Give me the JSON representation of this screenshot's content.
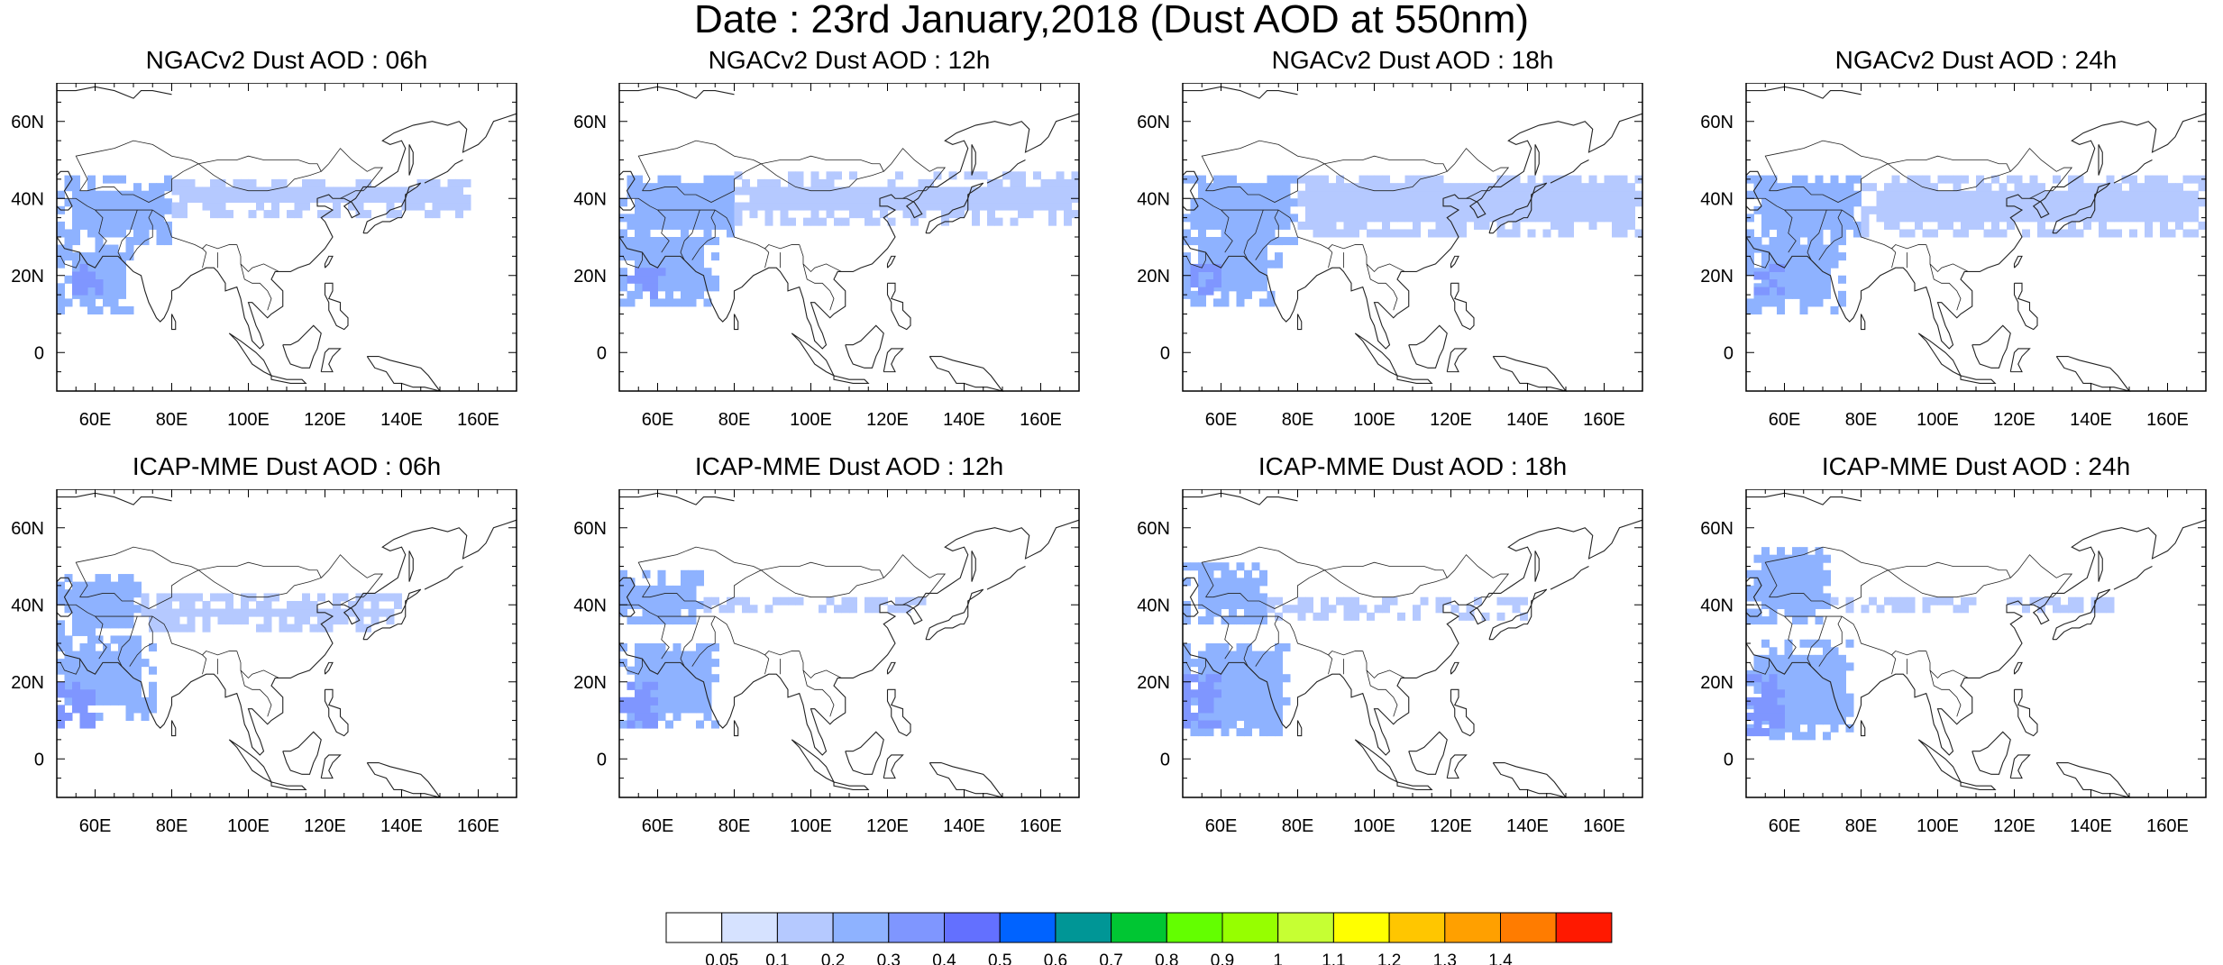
{
  "title": "Date : 23rd January,2018 (Dust AOD at 550nm)",
  "chart_data": [
    {
      "type": "heatmap",
      "title": "NGACv2 Dust AOD : 06h",
      "model": "NGACv2",
      "lead": "06h",
      "xticks": [
        "60E",
        "80E",
        "100E",
        "120E",
        "140E",
        "160E"
      ],
      "yticks": [
        "60N",
        "40N",
        "20N",
        "0"
      ],
      "xlim": [
        50,
        170
      ],
      "ylim": [
        -10,
        70
      ],
      "dust_regions": [
        {
          "lon": [
            50,
            80
          ],
          "lat": [
            28,
            45
          ],
          "value": 0.2
        },
        {
          "lon": [
            80,
            158
          ],
          "lat": [
            35,
            45
          ],
          "value": 0.1
        },
        {
          "lon": [
            50,
            70
          ],
          "lat": [
            10,
            28
          ],
          "value": 0.2
        },
        {
          "lon": [
            52,
            62
          ],
          "lat": [
            15,
            22
          ],
          "value": 0.3
        }
      ]
    },
    {
      "type": "heatmap",
      "title": "NGACv2 Dust AOD : 12h",
      "model": "NGACv2",
      "lead": "12h",
      "xticks": [
        "60E",
        "80E",
        "100E",
        "120E",
        "140E",
        "160E"
      ],
      "yticks": [
        "60N",
        "40N",
        "20N",
        "0"
      ],
      "xlim": [
        50,
        170
      ],
      "ylim": [
        -10,
        70
      ],
      "dust_regions": [
        {
          "lon": [
            50,
            80
          ],
          "lat": [
            28,
            46
          ],
          "value": 0.2
        },
        {
          "lon": [
            80,
            170
          ],
          "lat": [
            33,
            46
          ],
          "value": 0.1
        },
        {
          "lon": [
            50,
            75
          ],
          "lat": [
            12,
            30
          ],
          "value": 0.2
        },
        {
          "lon": [
            52,
            62
          ],
          "lat": [
            14,
            22
          ],
          "value": 0.3
        }
      ]
    },
    {
      "type": "heatmap",
      "title": "NGACv2 Dust AOD : 18h",
      "model": "NGACv2",
      "lead": "18h",
      "xticks": [
        "60E",
        "80E",
        "100E",
        "120E",
        "140E",
        "160E"
      ],
      "yticks": [
        "60N",
        "40N",
        "20N",
        "0"
      ],
      "xlim": [
        50,
        170
      ],
      "ylim": [
        -10,
        70
      ],
      "dust_regions": [
        {
          "lon": [
            50,
            80
          ],
          "lat": [
            28,
            46
          ],
          "value": 0.2
        },
        {
          "lon": [
            80,
            170
          ],
          "lat": [
            30,
            46
          ],
          "value": 0.1
        },
        {
          "lon": [
            50,
            75
          ],
          "lat": [
            12,
            30
          ],
          "value": 0.2
        },
        {
          "lon": [
            52,
            60
          ],
          "lat": [
            15,
            22
          ],
          "value": 0.3
        }
      ]
    },
    {
      "type": "heatmap",
      "title": "NGACv2 Dust AOD : 24h",
      "model": "NGACv2",
      "lead": "24h",
      "xticks": [
        "60E",
        "80E",
        "100E",
        "120E",
        "140E",
        "160E"
      ],
      "yticks": [
        "60N",
        "40N",
        "20N",
        "0"
      ],
      "xlim": [
        50,
        170
      ],
      "ylim": [
        -10,
        70
      ],
      "dust_regions": [
        {
          "lon": [
            50,
            80
          ],
          "lat": [
            28,
            46
          ],
          "value": 0.2
        },
        {
          "lon": [
            80,
            170
          ],
          "lat": [
            30,
            45
          ],
          "value": 0.1
        },
        {
          "lon": [
            50,
            75
          ],
          "lat": [
            10,
            30
          ],
          "value": 0.2
        },
        {
          "lon": [
            52,
            60
          ],
          "lat": [
            15,
            22
          ],
          "value": 0.3
        }
      ]
    },
    {
      "type": "heatmap",
      "title": "ICAP-MME Dust AOD : 06h",
      "model": "ICAP-MME",
      "lead": "06h",
      "xticks": [
        "60E",
        "80E",
        "100E",
        "120E",
        "140E",
        "160E"
      ],
      "yticks": [
        "60N",
        "40N",
        "20N",
        "0"
      ],
      "xlim": [
        50,
        170
      ],
      "ylim": [
        -10,
        70
      ],
      "dust_regions": [
        {
          "lon": [
            50,
            72
          ],
          "lat": [
            30,
            48
          ],
          "value": 0.2
        },
        {
          "lon": [
            72,
            140
          ],
          "lat": [
            33,
            42
          ],
          "value": 0.1
        },
        {
          "lon": [
            50,
            75
          ],
          "lat": [
            10,
            30
          ],
          "value": 0.2
        },
        {
          "lon": [
            50,
            60
          ],
          "lat": [
            8,
            20
          ],
          "value": 0.3
        }
      ]
    },
    {
      "type": "heatmap",
      "title": "ICAP-MME Dust AOD : 12h",
      "model": "ICAP-MME",
      "lead": "12h",
      "xticks": [
        "60E",
        "80E",
        "100E",
        "120E",
        "140E",
        "160E"
      ],
      "yticks": [
        "60N",
        "40N",
        "20N",
        "0"
      ],
      "xlim": [
        50,
        170
      ],
      "ylim": [
        -10,
        70
      ],
      "dust_regions": [
        {
          "lon": [
            50,
            72
          ],
          "lat": [
            35,
            48
          ],
          "value": 0.2
        },
        {
          "lon": [
            72,
            130
          ],
          "lat": [
            38,
            42
          ],
          "value": 0.1
        },
        {
          "lon": [
            50,
            76
          ],
          "lat": [
            8,
            30
          ],
          "value": 0.2
        },
        {
          "lon": [
            50,
            60
          ],
          "lat": [
            8,
            20
          ],
          "value": 0.3
        }
      ]
    },
    {
      "type": "heatmap",
      "title": "ICAP-MME Dust AOD : 18h",
      "model": "ICAP-MME",
      "lead": "18h",
      "xticks": [
        "60E",
        "80E",
        "100E",
        "120E",
        "140E",
        "160E"
      ],
      "yticks": [
        "60N",
        "40N",
        "20N",
        "0"
      ],
      "xlim": [
        50,
        170
      ],
      "ylim": [
        -10,
        70
      ],
      "dust_regions": [
        {
          "lon": [
            50,
            72
          ],
          "lat": [
            35,
            50
          ],
          "value": 0.2
        },
        {
          "lon": [
            72,
            140
          ],
          "lat": [
            36,
            42
          ],
          "value": 0.1
        },
        {
          "lon": [
            50,
            78
          ],
          "lat": [
            6,
            30
          ],
          "value": 0.2
        },
        {
          "lon": [
            50,
            60
          ],
          "lat": [
            8,
            22
          ],
          "value": 0.3
        }
      ]
    },
    {
      "type": "heatmap",
      "title": "ICAP-MME Dust AOD : 24h",
      "model": "ICAP-MME",
      "lead": "24h",
      "xticks": [
        "60E",
        "80E",
        "100E",
        "120E",
        "140E",
        "160E"
      ],
      "yticks": [
        "60N",
        "40N",
        "20N",
        "0"
      ],
      "xlim": [
        50,
        170
      ],
      "ylim": [
        -10,
        70
      ],
      "dust_regions": [
        {
          "lon": [
            50,
            72
          ],
          "lat": [
            35,
            55
          ],
          "value": 0.2
        },
        {
          "lon": [
            72,
            145
          ],
          "lat": [
            38,
            42
          ],
          "value": 0.1
        },
        {
          "lon": [
            50,
            78
          ],
          "lat": [
            5,
            30
          ],
          "value": 0.2
        },
        {
          "lon": [
            50,
            60
          ],
          "lat": [
            6,
            22
          ],
          "value": 0.3
        }
      ]
    }
  ],
  "colorbar": {
    "colors": [
      "#ffffff",
      "#d6e2ff",
      "#b5c9ff",
      "#8eb2ff",
      "#7f96ff",
      "#6370ff",
      "#0063ff",
      "#009696",
      "#00c633",
      "#63ff00",
      "#96ff00",
      "#c6ff33",
      "#ffff00",
      "#ffc600",
      "#ffa000",
      "#ff7c00",
      "#ff1900"
    ],
    "labels": [
      "0.05",
      "0.1",
      "0.2",
      "0.3",
      "0.4",
      "0.5",
      "0.6",
      "0.7",
      "0.8",
      "0.9",
      "1",
      "1.1",
      "1.2",
      "1.3",
      "1.4"
    ]
  }
}
